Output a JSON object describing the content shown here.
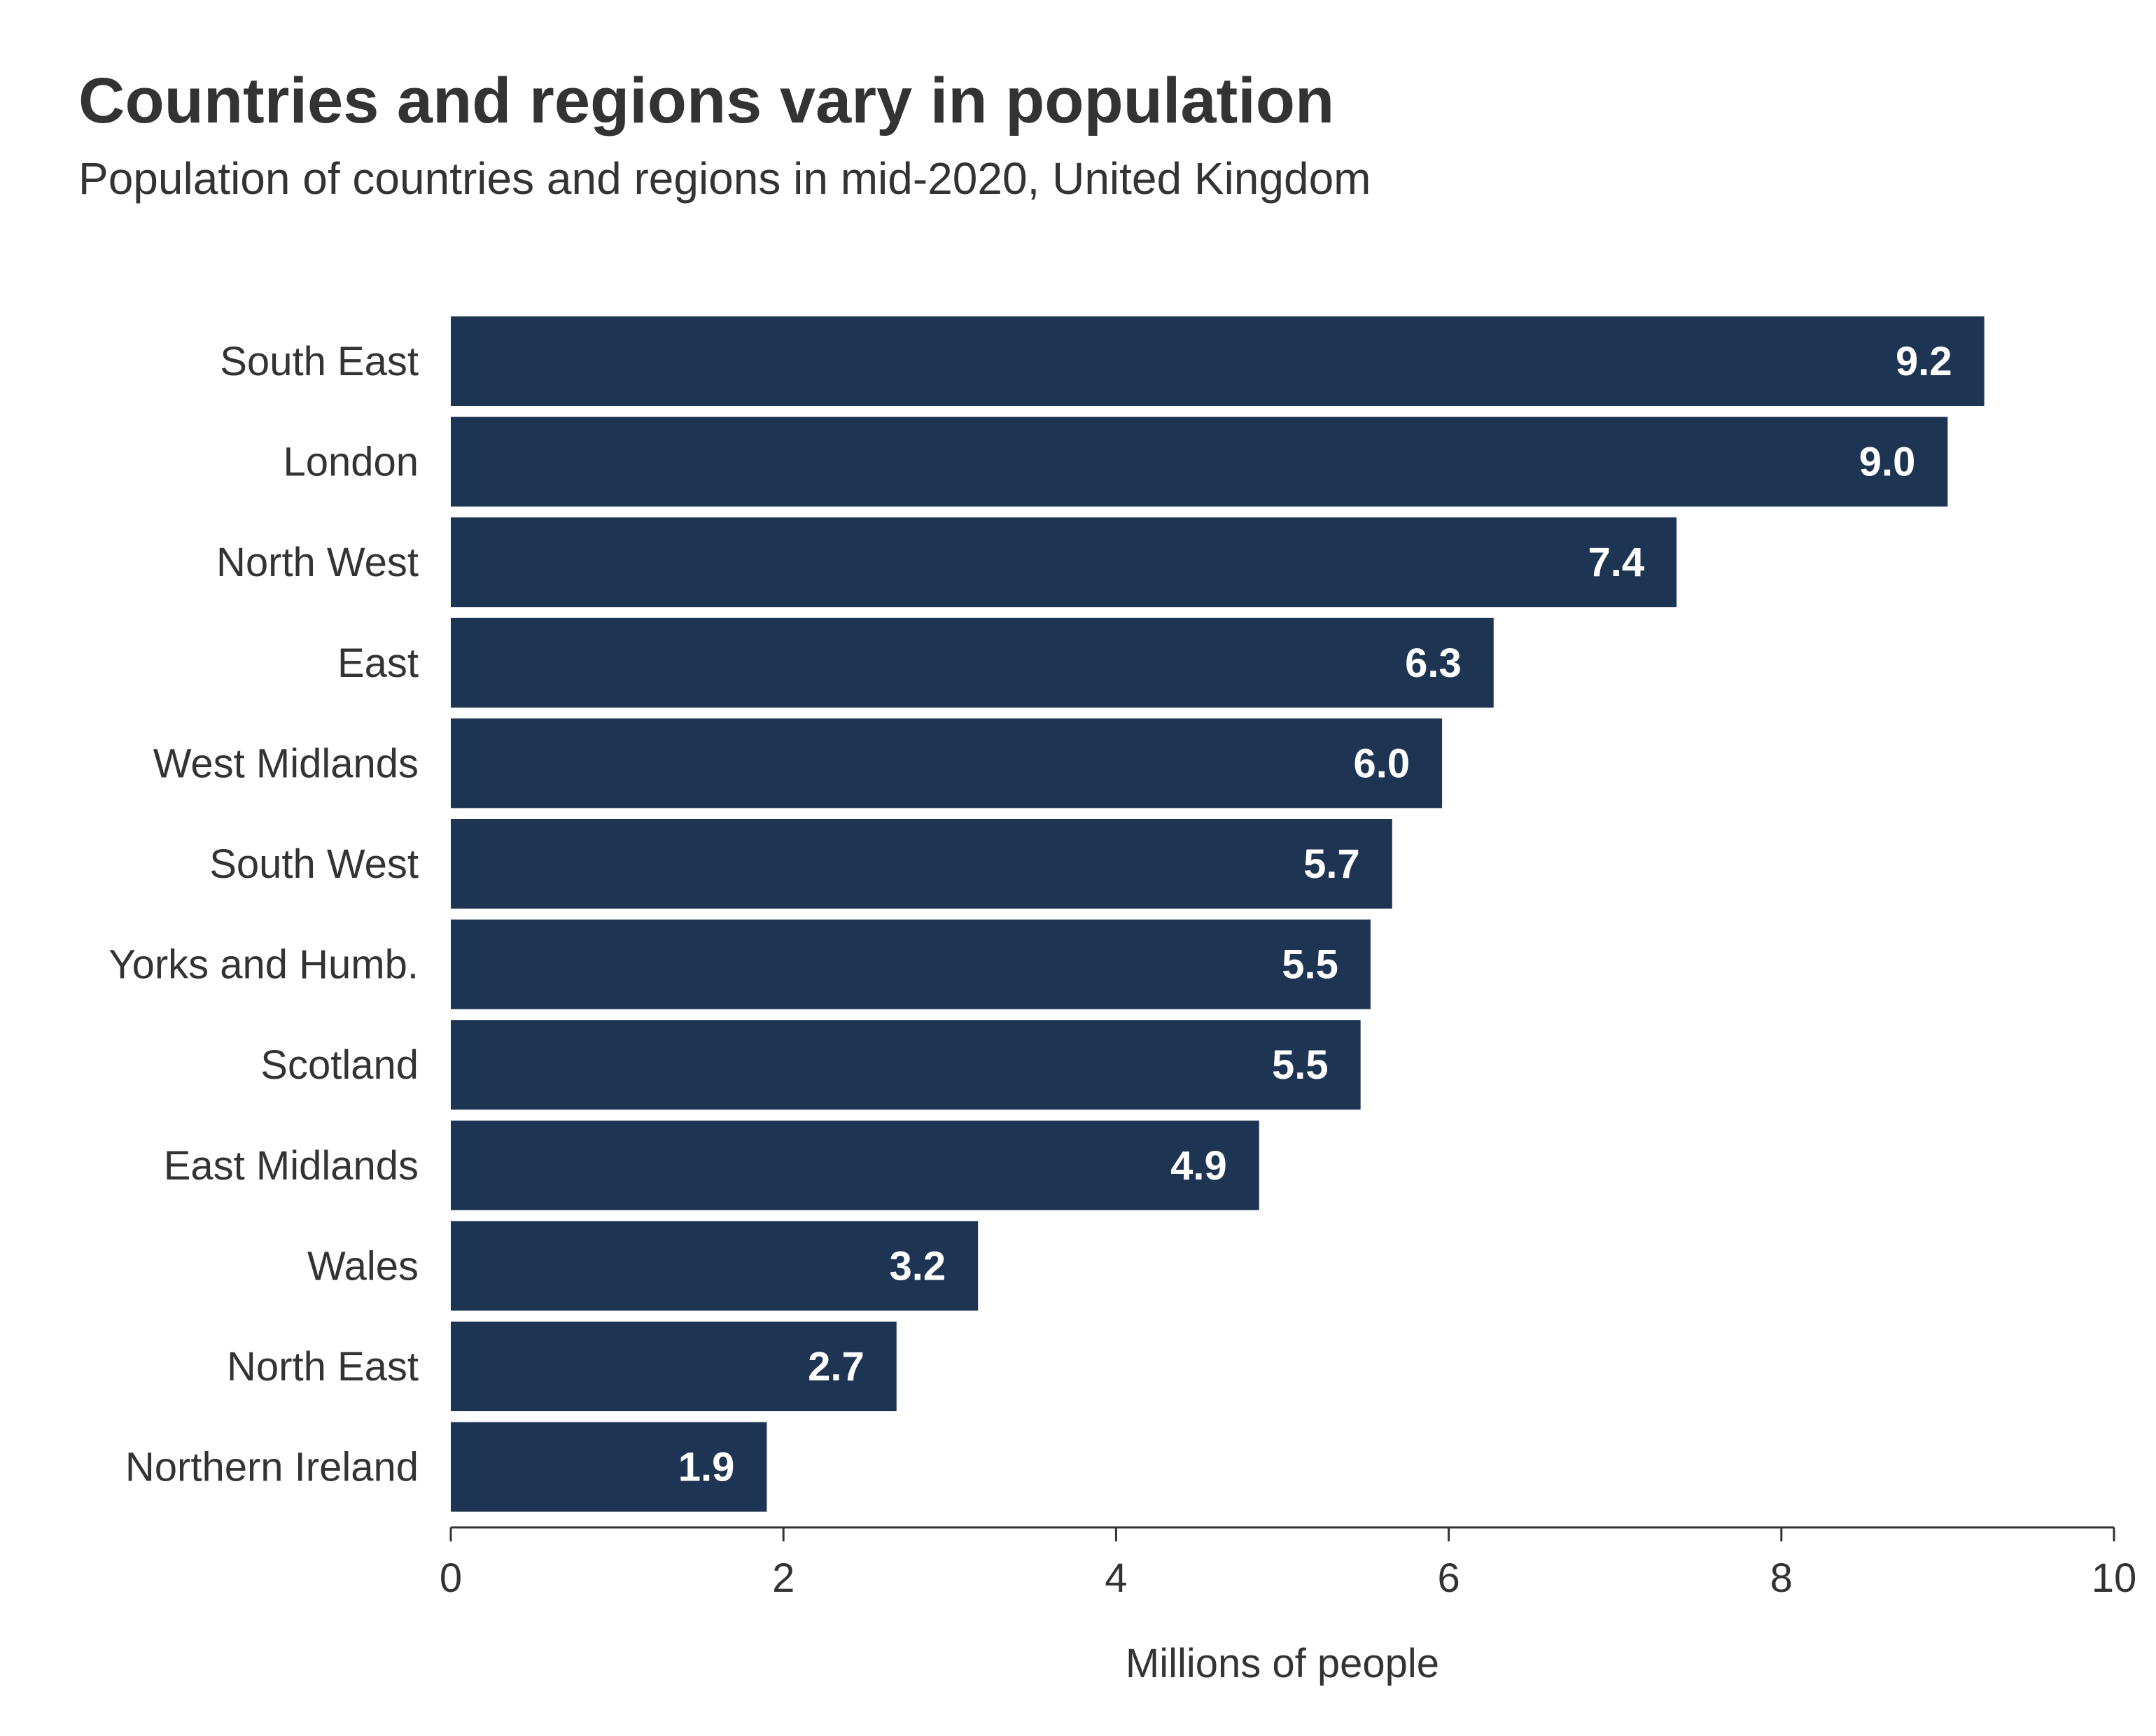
{
  "title": "Countries and regions vary in population",
  "subtitle": "Population of countries and regions in mid-2020, United Kingdom",
  "chart_data": {
    "type": "bar",
    "orientation": "horizontal",
    "title": "Countries and regions vary in population",
    "subtitle": "Population of countries and regions in mid-2020, United Kingdom",
    "categories": [
      "South East",
      "London",
      "North West",
      "East",
      "West Midlands",
      "South West",
      "Yorks and Humb.",
      "Scotland",
      "East Midlands",
      "Wales",
      "North East",
      "Northern Ireland"
    ],
    "values": [
      9.22,
      9.0,
      7.37,
      6.27,
      5.96,
      5.66,
      5.53,
      5.47,
      4.86,
      3.17,
      2.68,
      1.9
    ],
    "value_labels": [
      "9.2",
      "9.0",
      "7.4",
      "6.3",
      "6.0",
      "5.7",
      "5.5",
      "5.5",
      "4.9",
      "3.2",
      "2.7",
      "1.9"
    ],
    "xlabel": "Millions of people",
    "ylabel": "",
    "xlim": [
      0,
      10
    ],
    "xticks": [
      0,
      2,
      4,
      6,
      8,
      10
    ],
    "xtick_labels": [
      "0",
      "2",
      "4",
      "6",
      "8",
      "10"
    ],
    "grid": false,
    "bar_color": "#1d3453",
    "label_color": "#ffffff"
  }
}
